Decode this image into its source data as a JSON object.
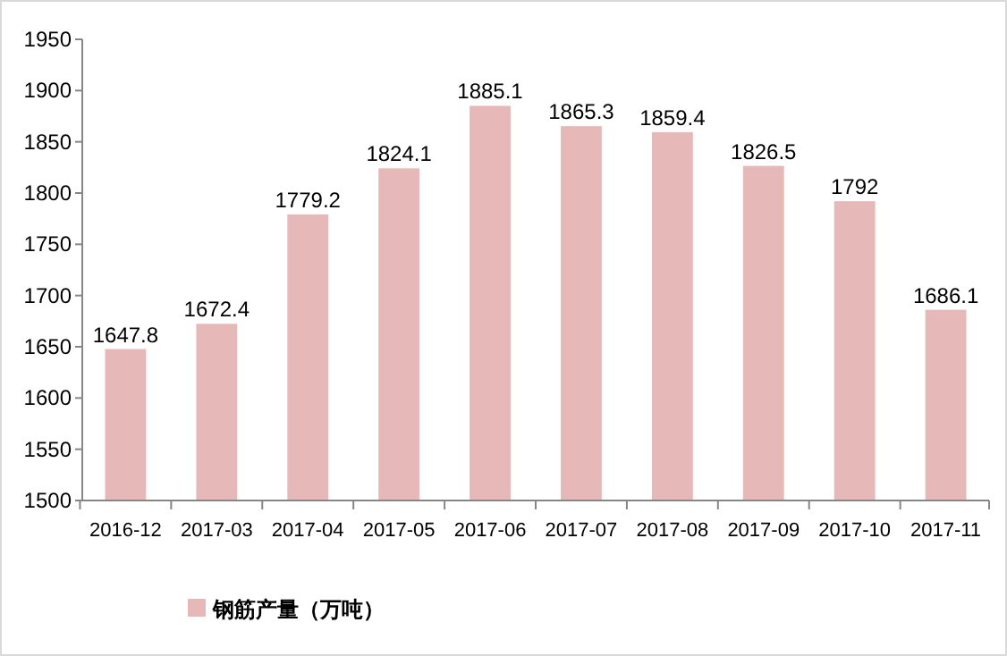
{
  "chart_data": {
    "type": "bar",
    "categories": [
      "2016-12",
      "2017-03",
      "2017-04",
      "2017-05",
      "2017-06",
      "2017-07",
      "2017-08",
      "2017-09",
      "2017-10",
      "2017-11"
    ],
    "series": [
      {
        "name": "钢筋产量（万吨）",
        "color": "#e6b9b8",
        "values": [
          1647.8,
          1672.4,
          1779.2,
          1824.1,
          1885.1,
          1865.3,
          1859.4,
          1826.5,
          1792,
          1686.1
        ]
      }
    ],
    "ylim": [
      1500,
      1950
    ],
    "yticks": [
      1500,
      1550,
      1600,
      1650,
      1700,
      1750,
      1800,
      1850,
      1900,
      1950
    ],
    "data_labels": true,
    "grid": false,
    "legend": "bottom left"
  }
}
